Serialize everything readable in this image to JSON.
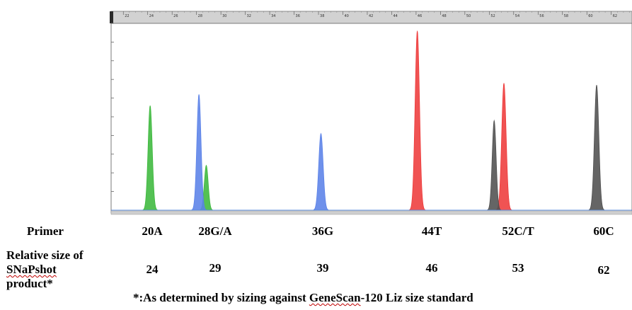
{
  "chart_data": {
    "type": "area",
    "title": "",
    "xlabel": "",
    "ylabel": "",
    "x_ruler_ticks": [
      "22",
      "24",
      "26",
      "28",
      "30",
      "32",
      "34",
      "36",
      "38",
      "40",
      "42",
      "44",
      "46",
      "48",
      "50",
      "52",
      "54",
      "56",
      "58",
      "60",
      "62",
      "6"
    ],
    "xlim": [
      21.0,
      63.7
    ],
    "ylim": [
      0,
      1.0
    ],
    "grid": false,
    "series": [
      {
        "color": "#3cb83c",
        "peaks": [
          {
            "x": 24.2,
            "height": 0.56,
            "width": 0.17
          },
          {
            "x": 28.8,
            "height": 0.24,
            "width": 0.16
          }
        ]
      },
      {
        "color": "#5b82e8",
        "peaks": [
          {
            "x": 28.2,
            "height": 0.62,
            "width": 0.17
          },
          {
            "x": 38.2,
            "height": 0.41,
            "width": 0.18
          }
        ]
      },
      {
        "color": "#ee3b3b",
        "peaks": [
          {
            "x": 46.1,
            "height": 0.96,
            "width": 0.18
          },
          {
            "x": 53.2,
            "height": 0.68,
            "width": 0.18
          }
        ]
      },
      {
        "color": "#505050",
        "peaks": [
          {
            "x": 52.4,
            "height": 0.48,
            "width": 0.16
          },
          {
            "x": 60.8,
            "height": 0.67,
            "width": 0.18
          }
        ]
      }
    ]
  },
  "table": {
    "primer_label": "Primer",
    "size_label_lines": [
      "Relative size of",
      "SNaPshot",
      "product*"
    ],
    "primers": [
      "20A",
      "28G/A",
      "36G",
      "44T",
      "52C/T",
      "60C"
    ],
    "sizes": [
      "24",
      "29",
      "39",
      "46",
      "53",
      "62"
    ]
  },
  "footnote": {
    "prefix": "*:As determined by sizing against ",
    "link_text": "GeneScan",
    "suffix": "-120 Liz size standard"
  }
}
